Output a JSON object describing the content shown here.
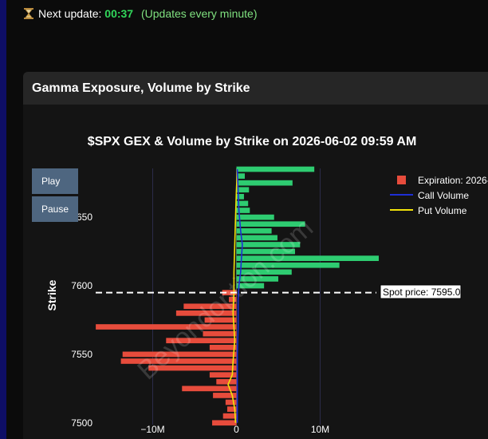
{
  "update_bar": {
    "label": "Next update:",
    "countdown": "00:37",
    "interval": "(Updates every minute)"
  },
  "panel": {
    "title": "Gamma Exposure, Volume by Strike"
  },
  "controls": {
    "play": "Play",
    "pause": "Pause"
  },
  "watermark": "Beyondoption.com",
  "colors": {
    "gex_positive": "#2ecc71",
    "gex_negative": "#e74c3c",
    "call_volume": "#1e2fd6",
    "put_volume": "#f1e20a",
    "countdown": "#31d65a"
  },
  "chart_data": {
    "type": "bar",
    "orientation": "horizontal",
    "title": "$SPX GEX & Volume by Strike on 2026-06-02 09:59 AM",
    "ylabel": "Strike",
    "xlabel": "",
    "x_ticks": [
      "−10M",
      "0",
      "10M"
    ],
    "x_tick_values": [
      -10000000,
      0,
      10000000
    ],
    "y_ticks": [
      "7650",
      "7600",
      "7550",
      "7500"
    ],
    "y_tick_values": [
      7650,
      7600,
      7550,
      7500
    ],
    "ylim": [
      7495,
      7685
    ],
    "xlim": [
      -17000000,
      17000000
    ],
    "legend": {
      "position": "top-right",
      "entries": [
        "Expiration: 2026-",
        "Call Volume",
        "Put Volume"
      ]
    },
    "spot_price": {
      "value": 7595,
      "label": "Spot price: 7595.0"
    },
    "gex": [
      {
        "strike": 7685,
        "value": 9300000
      },
      {
        "strike": 7680,
        "value": 1000000
      },
      {
        "strike": 7675,
        "value": 6700000
      },
      {
        "strike": 7670,
        "value": 1500000
      },
      {
        "strike": 7665,
        "value": 900000
      },
      {
        "strike": 7660,
        "value": 1400000
      },
      {
        "strike": 7655,
        "value": 1600000
      },
      {
        "strike": 7650,
        "value": 4500000
      },
      {
        "strike": 7645,
        "value": 8200000
      },
      {
        "strike": 7640,
        "value": 4200000
      },
      {
        "strike": 7635,
        "value": 4900000
      },
      {
        "strike": 7630,
        "value": 7600000
      },
      {
        "strike": 7625,
        "value": 7000000
      },
      {
        "strike": 7620,
        "value": 17000000
      },
      {
        "strike": 7615,
        "value": 12300000
      },
      {
        "strike": 7610,
        "value": 6600000
      },
      {
        "strike": 7605,
        "value": 5000000
      },
      {
        "strike": 7600,
        "value": 3300000
      },
      {
        "strike": 7595,
        "value": -1700000
      },
      {
        "strike": 7590,
        "value": -900000
      },
      {
        "strike": 7585,
        "value": -6300000
      },
      {
        "strike": 7580,
        "value": -7200000
      },
      {
        "strike": 7575,
        "value": -3800000
      },
      {
        "strike": 7570,
        "value": -16800000
      },
      {
        "strike": 7565,
        "value": -4000000
      },
      {
        "strike": 7560,
        "value": -8400000
      },
      {
        "strike": 7555,
        "value": -3200000
      },
      {
        "strike": 7550,
        "value": -13600000
      },
      {
        "strike": 7545,
        "value": -13800000
      },
      {
        "strike": 7540,
        "value": -10500000
      },
      {
        "strike": 7535,
        "value": -3200000
      },
      {
        "strike": 7530,
        "value": -2400000
      },
      {
        "strike": 7525,
        "value": -6500000
      },
      {
        "strike": 7520,
        "value": -2800000
      },
      {
        "strike": 7515,
        "value": -1300000
      },
      {
        "strike": 7510,
        "value": -1100000
      },
      {
        "strike": 7505,
        "value": -1600000
      },
      {
        "strike": 7500,
        "value": -2900000
      }
    ],
    "call_volume": [
      {
        "strike": 7685,
        "value": 100000
      },
      {
        "strike": 7670,
        "value": 200000
      },
      {
        "strike": 7655,
        "value": 300000
      },
      {
        "strike": 7640,
        "value": 500000
      },
      {
        "strike": 7630,
        "value": 700000
      },
      {
        "strike": 7620,
        "value": 600000
      },
      {
        "strike": 7610,
        "value": 500000
      },
      {
        "strike": 7600,
        "value": 300000
      },
      {
        "strike": 7590,
        "value": 200000
      },
      {
        "strike": 7570,
        "value": 200000
      },
      {
        "strike": 7550,
        "value": 100000
      },
      {
        "strike": 7520,
        "value": 100000
      },
      {
        "strike": 7500,
        "value": 100000
      }
    ],
    "put_volume": [
      {
        "strike": 7685,
        "value": 100000
      },
      {
        "strike": 7670,
        "value": 0
      },
      {
        "strike": 7650,
        "value": -100000
      },
      {
        "strike": 7630,
        "value": -200000
      },
      {
        "strike": 7610,
        "value": -300000
      },
      {
        "strike": 7595,
        "value": -300000
      },
      {
        "strike": 7580,
        "value": -400000
      },
      {
        "strike": 7560,
        "value": -200000
      },
      {
        "strike": 7545,
        "value": -400000
      },
      {
        "strike": 7535,
        "value": -500000
      },
      {
        "strike": 7528,
        "value": -1000000
      },
      {
        "strike": 7520,
        "value": -500000
      },
      {
        "strike": 7510,
        "value": -200000
      },
      {
        "strike": 7500,
        "value": -100000
      }
    ]
  }
}
